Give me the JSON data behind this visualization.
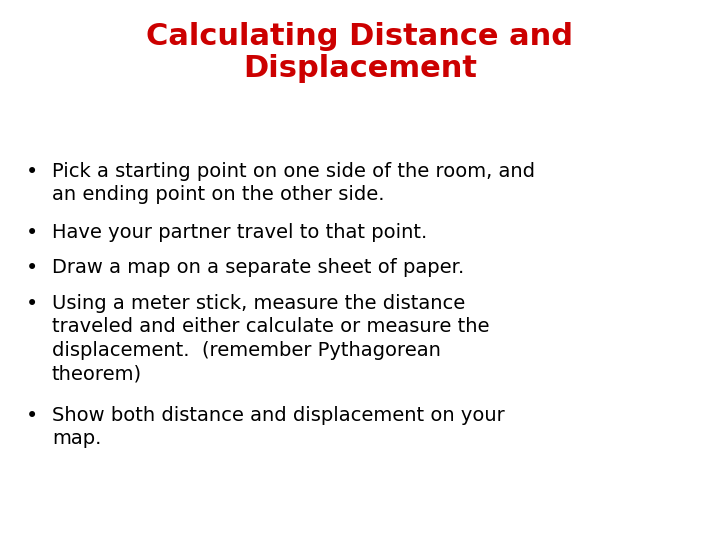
{
  "title_line1": "Calculating Distance and",
  "title_line2": "Displacement",
  "title_color": "#cc0000",
  "title_fontsize": 22,
  "title_fontweight": "bold",
  "bullet_color": "#000000",
  "bullet_fontsize": 14,
  "background_color": "#ffffff",
  "bullets": [
    "Pick a starting point on one side of the room, and\nan ending point on the other side.",
    "Have your partner travel to that point.",
    "Draw a map on a separate sheet of paper.",
    "Using a meter stick, measure the distance\ntraveled and either calculate or measure the\ndisplacement.  (remember Pythagorean\ntheorem)",
    "Show both distance and displacement on your\nmap."
  ],
  "bullet_line_counts": [
    2,
    1,
    1,
    4,
    2
  ],
  "fig_width": 7.2,
  "fig_height": 5.4,
  "dpi": 100
}
